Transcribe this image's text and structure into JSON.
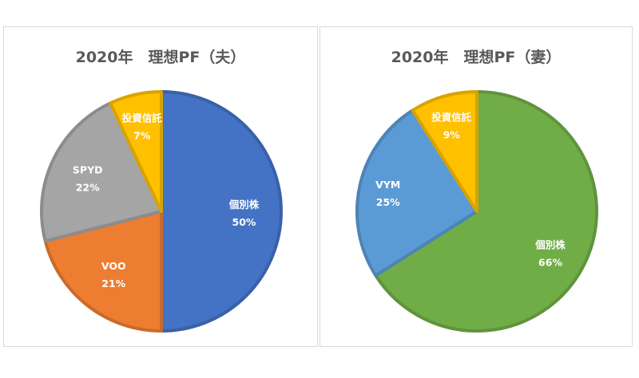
{
  "colors": {
    "blue": "#4472c4",
    "orange": "#ed7d31",
    "gray": "#a5a5a5",
    "yellow": "#ffc000",
    "green": "#70ad47",
    "lightblue": "#5b9bd5"
  },
  "chart_data": [
    {
      "type": "pie",
      "title": "2020年　理想PF（夫）",
      "series": [
        {
          "name": "個別株",
          "value": 50,
          "label": "50%",
          "color": "blue"
        },
        {
          "name": "VOO",
          "value": 21,
          "label": "21%",
          "color": "orange"
        },
        {
          "name": "SPYD",
          "value": 22,
          "label": "22%",
          "color": "gray"
        },
        {
          "name": "投資信託",
          "value": 7,
          "label": "7%",
          "color": "yellow"
        }
      ],
      "start_angle": 0,
      "direction": "clockwise",
      "legend": "none"
    },
    {
      "type": "pie",
      "title": "2020年　理想PF（妻）",
      "series": [
        {
          "name": "個別株",
          "value": 66,
          "label": "66%",
          "color": "green"
        },
        {
          "name": "VYM",
          "value": 25,
          "label": "25%",
          "color": "lightblue"
        },
        {
          "name": "投資信託",
          "value": 9,
          "label": "9%",
          "color": "yellow"
        }
      ],
      "start_angle": 0,
      "direction": "clockwise",
      "legend": "none"
    }
  ]
}
